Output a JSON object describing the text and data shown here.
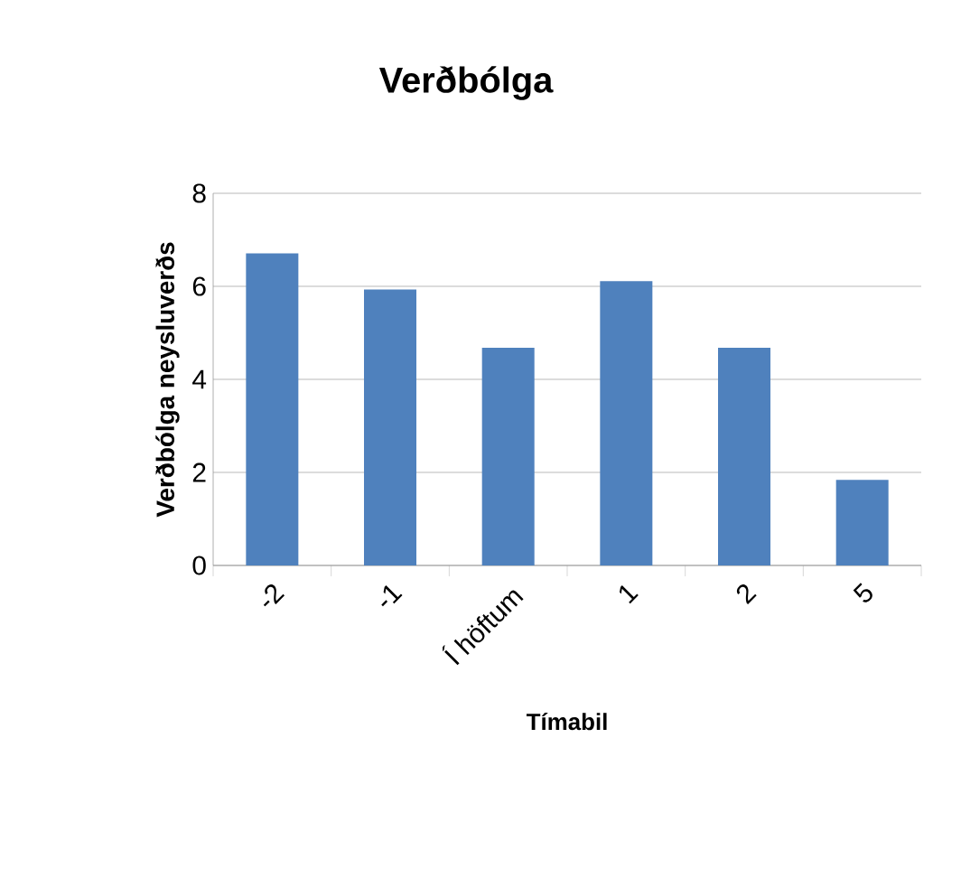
{
  "chart_data": {
    "type": "bar",
    "title": "Verðbólga",
    "xlabel": "Tímabil",
    "ylabel": "Verðbólga neysluverðs",
    "categories": [
      "-2",
      "-1",
      "Í höftum",
      "1",
      "2",
      "5"
    ],
    "values": [
      6.71,
      5.93,
      4.68,
      6.11,
      4.68,
      1.84
    ],
    "color": "#4f81bd",
    "ylim": [
      0,
      8
    ],
    "yticks": [
      0,
      2,
      4,
      6,
      8
    ],
    "grid": "y"
  }
}
